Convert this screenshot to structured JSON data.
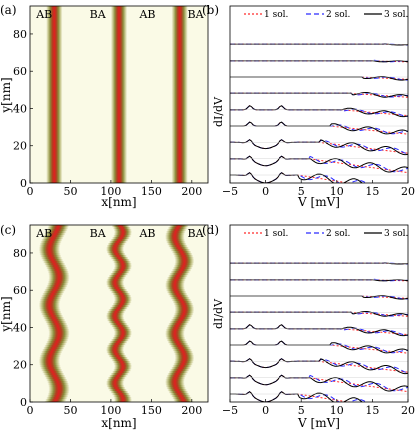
{
  "panels": {
    "a": {
      "label": "(a)",
      "xlabel": "x[nm]",
      "ylabel": "y[nm]",
      "xticks": [
        "0",
        "50",
        "100",
        "150",
        "200"
      ],
      "yticks": [
        "0",
        "20",
        "40",
        "60",
        "80"
      ],
      "region_labels": [
        "AB",
        "BA",
        "AB",
        "BA"
      ]
    },
    "b": {
      "label": "(b)",
      "ylabel": "dI/dV",
      "xlabel": "V [mV]",
      "xticks": [
        "−5",
        "0",
        "5",
        "10",
        "15",
        "20"
      ],
      "legend": [
        "1 sol.",
        "2 sol.",
        "3 sol."
      ]
    },
    "c": {
      "label": "(c)",
      "xlabel": "x[nm]",
      "ylabel": "y[nm]",
      "xticks": [
        "0",
        "50",
        "100",
        "150",
        "200"
      ],
      "yticks": [
        "0",
        "20",
        "40",
        "60",
        "80"
      ],
      "region_labels": [
        "AB",
        "BA",
        "AB",
        "BA"
      ]
    },
    "d": {
      "label": "(d)",
      "ylabel": "dI/dV",
      "xlabel": "V [mV]",
      "xticks": [
        "−5",
        "0",
        "5",
        "10",
        "15",
        "20"
      ],
      "legend": [
        "1 sol.",
        "2 sol.",
        "3 sol."
      ]
    }
  },
  "colors": {
    "background": "#fafae6",
    "soliton_core": "#d42020",
    "soliton_edge": "#8a8a3a",
    "sol1": "#ff2a2a",
    "sol2": "#2a2aff",
    "sol3": "#000000"
  },
  "chart_data": [
    {
      "type": "heatmap",
      "title": "",
      "xlabel": "x[nm]",
      "ylabel": "y[nm]",
      "xlim": [
        0,
        220
      ],
      "ylim": [
        0,
        95
      ],
      "soliton_centers_nm": [
        30,
        110,
        185
      ],
      "shape": "straight"
    },
    {
      "type": "line",
      "title": "",
      "xlabel": "V [mV]",
      "ylabel": "dI/dV",
      "xlim": [
        -5,
        20
      ],
      "series": [
        {
          "name": "1 sol."
        },
        {
          "name": "2 sol."
        },
        {
          "name": "3 sol."
        }
      ],
      "curves": 9
    },
    {
      "type": "heatmap",
      "title": "",
      "xlabel": "x[nm]",
      "ylabel": "y[nm]",
      "xlim": [
        0,
        220
      ],
      "ylim": [
        0,
        95
      ],
      "soliton_centers_nm": [
        30,
        110,
        185
      ],
      "shape": "wavy"
    },
    {
      "type": "line",
      "title": "",
      "xlabel": "V [mV]",
      "ylabel": "dI/dV",
      "xlim": [
        -5,
        20
      ],
      "series": [
        {
          "name": "1 sol."
        },
        {
          "name": "2 sol."
        },
        {
          "name": "3 sol."
        }
      ],
      "curves": 9
    }
  ]
}
